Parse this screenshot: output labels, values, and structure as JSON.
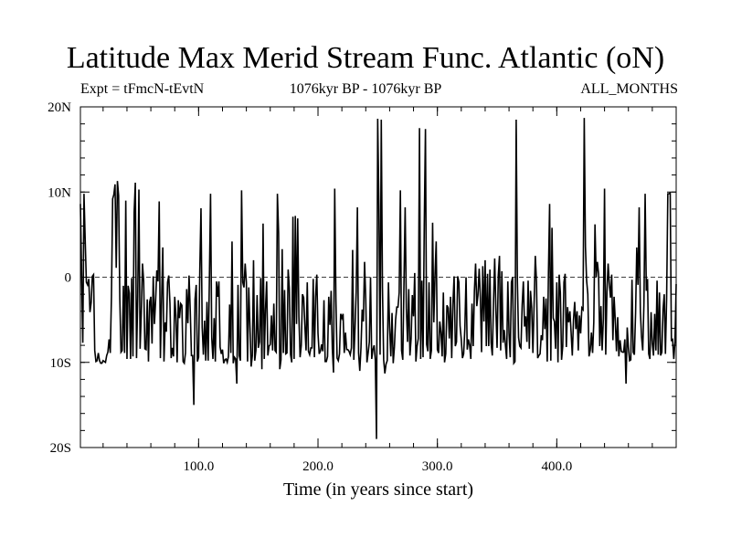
{
  "chart_data": {
    "type": "line",
    "title": "Latitude Max Merid Stream Func. Atlantic (oN)",
    "subtitle_left": "Expt = tFmcN-tEvtN",
    "subtitle_center": "1076kyr BP - 1076kyr BP",
    "subtitle_right": "ALL_MONTHS",
    "xlabel": "Time (in years since start)",
    "ylabel": "",
    "xlim": [
      1,
      500
    ],
    "ylim": [
      -20,
      20
    ],
    "x_ticks": [
      {
        "value": 100,
        "label": "100.0"
      },
      {
        "value": 200,
        "label": "200.0"
      },
      {
        "value": 300,
        "label": "300.0"
      },
      {
        "value": 400,
        "label": "400.0"
      }
    ],
    "y_ticks": [
      {
        "value": 20,
        "label": "20N"
      },
      {
        "value": 10,
        "label": "10N"
      },
      {
        "value": 0,
        "label": "0"
      },
      {
        "value": -10,
        "label": "10S"
      },
      {
        "value": -20,
        "label": "20S"
      }
    ],
    "zero_line": "dashed",
    "grid": false,
    "series": [
      {
        "x_start": 1,
        "x_step": 1,
        "values": [
          8.6,
          0.3,
          -7.7,
          9.8,
          4.4,
          -0.6,
          -0.9,
          -0.2,
          -4.1,
          -3.0,
          0.1,
          0.3,
          -8.6,
          -9.9,
          -9.8,
          -8.9,
          -9.8,
          -10.1,
          -10.1,
          -9.8,
          -9.9,
          -10.0,
          -9.2,
          -8.8,
          -7.3,
          -8.9,
          -2.3,
          9.2,
          9.7,
          10.9,
          1.1,
          11.3,
          9.6,
          -2.5,
          -8.8,
          -8.6,
          -1.0,
          -8.9,
          9.0,
          -9.6,
          -1.0,
          -1.9,
          -9.6,
          -0.1,
          -9.3,
          7.6,
          11.1,
          -9.5,
          -2.4,
          10.3,
          -8.4,
          -4.2,
          1.6,
          -0.5,
          -8.4,
          -8.5,
          -2.6,
          -9.9,
          -2.9,
          -2.3,
          -7.8,
          0.1,
          -5.5,
          -2.7,
          0.8,
          -0.5,
          8.9,
          -9.5,
          -2.7,
          3.5,
          -9.9,
          -5.3,
          -6.4,
          -0.6,
          0.2,
          -3.1,
          -9.5,
          -8.3,
          -9.3,
          -2.3,
          -4.5,
          -10.0,
          -2.7,
          -4.8,
          -3.1,
          -3.3,
          -9.9,
          -10.1,
          -8.9,
          -1.4,
          -5.4,
          0.2,
          -3.9,
          -9.2,
          -9.2,
          -15.0,
          -2.6,
          -0.9,
          -9.9,
          -9.4,
          0.8,
          8.1,
          -5.9,
          -9.1,
          -5.1,
          -9.8,
          -2.9,
          -9.8,
          -0.6,
          9.8,
          -7.1,
          -9.6,
          -4.8,
          -9.9,
          -0.5,
          -2.3,
          -0.5,
          -8.2,
          -9.0,
          -8.5,
          -10.1,
          -9.7,
          -9.6,
          -10.0,
          -9.3,
          -3.2,
          -8.9,
          4.2,
          -10.1,
          -9.4,
          -9.6,
          -12.5,
          -0.9,
          -9.2,
          -9.8,
          10.2,
          -0.6,
          -1.2,
          1.6,
          -0.6,
          -9.9,
          -1.2,
          -5.8,
          -10.5,
          -9.2,
          2.0,
          -9.8,
          -8.6,
          -2.1,
          -8.3,
          -7.6,
          -0.1,
          -10.8,
          6.3,
          -9.6,
          -3.8,
          -0.5,
          -9.2,
          -8.1,
          -7.9,
          -4.5,
          -8.6,
          -3.1,
          -8.6,
          -8.8,
          9.8,
          5.2,
          -10.8,
          -9.7,
          3.3,
          -8.9,
          -1.5,
          -9.0,
          -8.9,
          0.9,
          -1.3,
          -9.1,
          -10.0,
          7.1,
          -9.6,
          7.2,
          -5.5,
          6.9,
          -4.6,
          -9.4,
          -8.0,
          -2.0,
          -2.4,
          -5.7,
          -8.6,
          -0.6,
          -8.7,
          -9.1,
          -8.3,
          -8.3,
          -0.2,
          -9.4,
          -2.3,
          0.3,
          -6.6,
          -9.0,
          -8.7,
          -7.9,
          -8.7,
          -2.7,
          -9.9,
          -9.9,
          -9.3,
          -2.3,
          -5.6,
          -1.6,
          -8.4,
          -11.2,
          10.4,
          -2.6,
          -9.5,
          -9.8,
          -9.0,
          -4.3,
          -4.8,
          -4.3,
          -8.9,
          -6.5,
          -8.5,
          -8.5,
          -8.7,
          -9.1,
          -8.3,
          3.2,
          -9.7,
          -6.0,
          -1.7,
          8.2,
          -8.9,
          -11.0,
          -8.3,
          -3.8,
          -5.2,
          1.8,
          -2.6,
          -10.0,
          -8.9,
          -7.6,
          0.0,
          -9.6,
          -8.5,
          -8.0,
          -9.7,
          -19.0,
          18.6,
          8.5,
          -9.1,
          18.5,
          -1.3,
          -9.7,
          -11.3,
          -10.2,
          -9.8,
          -0.6,
          -5.9,
          -9.3,
          -4.2,
          -10.1,
          -8.2,
          -5.0,
          -3.5,
          -3.5,
          -1.8,
          10.2,
          -8.6,
          -9.7,
          -0.8,
          8.2,
          -3.6,
          -7.6,
          -1.4,
          -9.2,
          -7.2,
          -2.1,
          -4.6,
          0.5,
          -9.9,
          -8.1,
          -7.2,
          17.5,
          -9.6,
          -0.4,
          -9.4,
          6.0,
          17.4,
          -7.9,
          -8.7,
          -0.6,
          -9.6,
          -8.6,
          6.4,
          -5.3,
          0.2,
          4.2,
          -8.5,
          -8.9,
          -5.2,
          -6.5,
          -9.3,
          -1.8,
          -10.0,
          -9.0,
          -3.3,
          -3.6,
          -7.2,
          -2.3,
          -9.5,
          -3.2,
          0.1,
          -8.1,
          -7.6,
          0.1,
          -0.6,
          -5.7,
          -7.3,
          -9.5,
          -9.0,
          -6.0,
          0.0,
          -8.5,
          -7.3,
          -8.0,
          -9.6,
          -3.1,
          -8.1,
          -1.6,
          1.6,
          -3.4,
          -2.1,
          1.0,
          -2.4,
          -8.8,
          1.3,
          -5.2,
          2.0,
          -8.1,
          0.4,
          -8.1,
          0.9,
          -7.7,
          -9.2,
          -3.0,
          2.2,
          -3.8,
          -8.3,
          0.2,
          2.5,
          -8.6,
          0.7,
          -7.7,
          -6.2,
          -8.0,
          -9.6,
          -0.5,
          -6.6,
          -9.4,
          -0.6,
          0.0,
          -10.1,
          -9.9,
          18.5,
          -0.5,
          -7.1,
          -8.1,
          -8.3,
          -3.3,
          -0.5,
          -5.8,
          -4.6,
          -7.6,
          -0.4,
          -8.4,
          -1.6,
          -3.6,
          -8.9,
          -3.2,
          2.5,
          -0.5,
          -9.5,
          -9.2,
          -9.0,
          -6.8,
          -7.4,
          -2.3,
          -6.1,
          -2.5,
          -9.9,
          0.3,
          8.6,
          -9.8,
          5.8,
          -4.8,
          -5.2,
          -8.4,
          -0.6,
          -10.0,
          0.3,
          -1.8,
          -9.7,
          -8.1,
          -0.6,
          0.4,
          -8.2,
          -3.5,
          -5.3,
          -4.0,
          -6.5,
          -9.2,
          -5.0,
          -2.9,
          -6.1,
          -4.0,
          -8.6,
          -4.5,
          -6.6,
          -3.6,
          -3.8,
          18.7,
          3.6,
          -0.4,
          -2.0,
          -9.3,
          -8.6,
          -6.5,
          -8.9,
          -5.3,
          6.2,
          0.0,
          1.8,
          0.4,
          -8.1,
          -3.4,
          -8.6,
          -4.9,
          10.4,
          -9.1,
          -1.8,
          1.6,
          -0.8,
          -2.4,
          0.3,
          -7.4,
          -2.3,
          -5.1,
          -8.7,
          -4.7,
          -9.3,
          -7.4,
          -8.7,
          -8.8,
          -8.8,
          -7.3,
          -12.5,
          -5.9,
          -8.3,
          -9.8,
          -9.7,
          -0.3,
          -8.8,
          -9.1,
          -4.2,
          3.5,
          -0.9,
          8.2,
          -4.0,
          -7.0,
          -8.6,
          -3.1,
          9.8,
          -1.6,
          -0.2,
          -9.0,
          -9.6,
          -4.1,
          -7.8,
          -9.2,
          -4.3,
          -8.6,
          -0.4,
          -9.1,
          -1.8,
          -9.2,
          -8.8,
          -3.8,
          -2.0,
          -9.0,
          -2.5,
          9.8,
          9.8,
          9.9,
          -7.4,
          -7.3,
          -9.6,
          -7.6,
          -0.8
        ]
      }
    ]
  }
}
